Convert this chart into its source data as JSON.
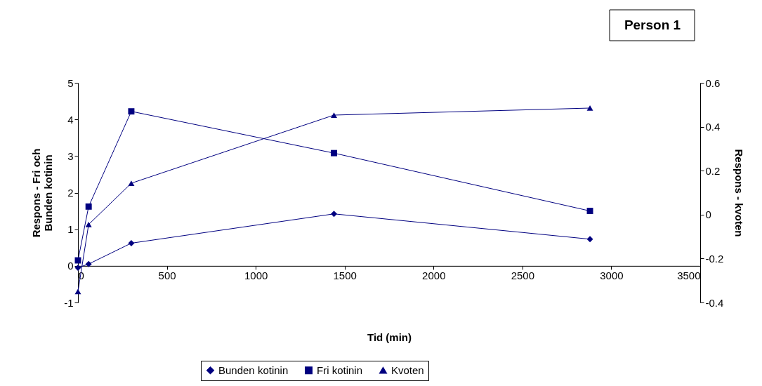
{
  "chart_data": {
    "type": "line",
    "xlabel": "Tid (min)",
    "ylabel": "Respons - Fri och\nBunden kotinin",
    "y2label": "Respons - kvoten",
    "annotations": [
      "Person 1"
    ],
    "xlim": [
      0,
      3500
    ],
    "xticks": [
      0,
      500,
      1000,
      1500,
      2000,
      2500,
      3000,
      3500
    ],
    "ylim": [
      -1,
      5
    ],
    "yticks": [
      -1,
      0,
      1,
      2,
      3,
      4,
      5
    ],
    "y2lim": [
      -0.4,
      0.6
    ],
    "y2ticks": [
      -0.4,
      -0.2,
      0,
      0.2,
      0.4,
      0.6
    ],
    "grid": false,
    "legend": "bottom",
    "series": [
      {
        "name": "Bunden kotinin",
        "color": "#000080",
        "marker": "diamond",
        "x": [
          0,
          60,
          300,
          1440,
          2880
        ],
        "values": [
          -0.05,
          0.05,
          0.62,
          1.42,
          0.73
        ]
      },
      {
        "name": "Fri kotinin",
        "color": "#000080",
        "marker": "square",
        "x": [
          0,
          60,
          300,
          1440,
          2880
        ],
        "values": [
          0.15,
          1.62,
          4.22,
          3.08,
          1.5
        ]
      },
      {
        "name": "Kvoten",
        "color": "#000080",
        "marker": "triangle",
        "axis": "y2",
        "x": [
          0,
          60,
          300,
          1440,
          2880
        ],
        "values": [
          -0.35,
          -0.045,
          0.143,
          0.453,
          0.485
        ]
      }
    ]
  }
}
